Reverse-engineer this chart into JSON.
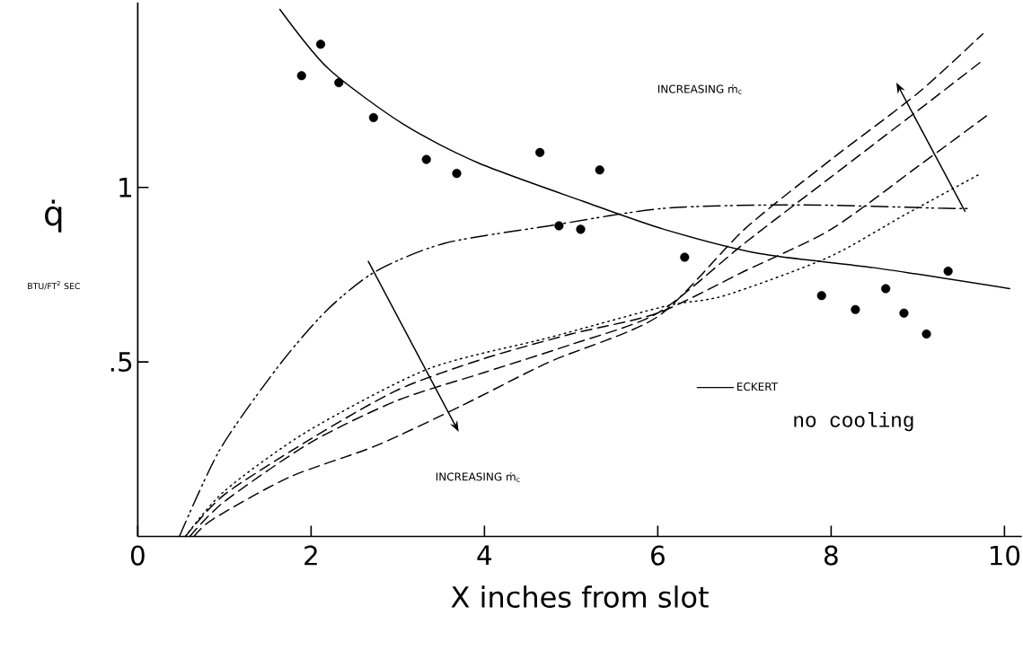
{
  "chart_data": {
    "type": "line",
    "xlabel": "X inches from slot",
    "ylabel": "q̇",
    "xlim": [
      0,
      10.2
    ],
    "ylim": [
      0,
      1.53
    ],
    "xticks": [
      0,
      2,
      4,
      6,
      8,
      10
    ],
    "yticks": [
      {
        "value": 0.5,
        "label": ".5"
      },
      {
        "value": 1,
        "label": "1"
      }
    ],
    "grid": false,
    "legend": "bottom right",
    "annotations": [
      "INCREASING ṁ$_{c}$",
      "INCREASING ṁ$_{c}$",
      "no cooling",
      "BTU/FT$^{2}$ SEC"
    ],
    "series": [
      {
        "name": "ECKERT",
        "color": "#000000",
        "line_style": "solid",
        "x": [
          1.64,
          2.2,
          3.07,
          3.93,
          5.14,
          6.07,
          7.18,
          8.49,
          10.06
        ],
        "values": [
          1.51,
          1.34,
          1.18,
          1.07,
          0.96,
          0.88,
          0.81,
          0.77,
          0.71
        ]
      },
      {
        "type": "scatter",
        "color": "#000000",
        "marker": "circle",
        "x": [
          1.89,
          2.11,
          2.32,
          2.72,
          3.33,
          3.68,
          4.64,
          4.86,
          5.11,
          5.33,
          6.31,
          7.89,
          8.28,
          8.63,
          8.84,
          9.1,
          9.35
        ],
        "values": [
          1.32,
          1.41,
          1.3,
          1.2,
          1.08,
          1.04,
          1.1,
          0.89,
          0.88,
          1.05,
          0.8,
          0.69,
          0.65,
          0.71,
          0.64,
          0.58,
          0.76
        ]
      },
      {
        "color": "#000000",
        "line_style": "dashdotdotted",
        "x": [
          0.48,
          0.95,
          1.63,
          2.19,
          2.75,
          3.54,
          4.75,
          6.07,
          7.63,
          9.32,
          9.58
        ],
        "values": [
          0,
          0.25,
          0.49,
          0.65,
          0.76,
          0.84,
          0.89,
          0.94,
          0.95,
          0.94,
          0.94
        ]
      },
      {
        "color": "#000000",
        "line_style": "dotted",
        "x": [
          0.55,
          1,
          1.95,
          3.35,
          4.75,
          6.09,
          6.77,
          7.97,
          8.84,
          9.73
        ],
        "values": [
          0,
          0.13,
          0.3,
          0.48,
          0.57,
          0.66,
          0.69,
          0.8,
          0.92,
          1.04
        ]
      },
      {
        "color": "#000000",
        "line_style": "dashed",
        "x": [
          0.55,
          1,
          2,
          3,
          4,
          5,
          6,
          7,
          8,
          9,
          9.82
        ],
        "values": [
          0,
          0.12,
          0.28,
          0.42,
          0.51,
          0.58,
          0.64,
          0.76,
          0.88,
          1.06,
          1.21
        ]
      },
      {
        "color": "#000000",
        "line_style": "dashed",
        "x": [
          0.6,
          1,
          2,
          3,
          4,
          5,
          6,
          7,
          8,
          9,
          9.73
        ],
        "values": [
          0,
          0.1,
          0.27,
          0.39,
          0.47,
          0.55,
          0.64,
          0.84,
          1.03,
          1.22,
          1.36
        ]
      },
      {
        "color": "#000000",
        "line_style": "dashed",
        "x": [
          0.65,
          0.87,
          1.75,
          2.75,
          3.74,
          4.75,
          6,
          7,
          8,
          9,
          9.75
        ],
        "values": [
          0,
          0.05,
          0.17,
          0.26,
          0.375,
          0.5,
          0.63,
          0.88,
          1.08,
          1.27,
          1.44
        ]
      }
    ]
  }
}
